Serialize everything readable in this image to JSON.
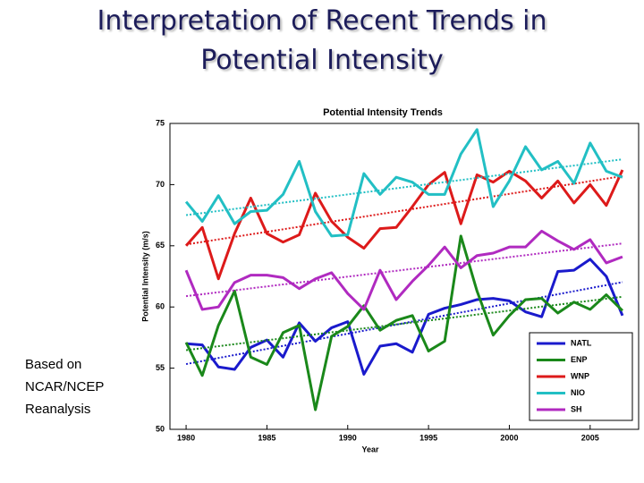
{
  "slide_title": "Interpretation of Recent Trends in Potential Intensity",
  "note": "Based on NCAR/NCEP Reanalysis",
  "chart_data": {
    "type": "line",
    "title": "Potential Intensity Trends",
    "x_label": "Year",
    "y_label": "Potential Intensity (m/s)",
    "x": [
      1980,
      1981,
      1982,
      1983,
      1984,
      1985,
      1986,
      1987,
      1988,
      1989,
      1990,
      1991,
      1992,
      1993,
      1994,
      1995,
      1996,
      1997,
      1998,
      1999,
      2000,
      2001,
      2002,
      2003,
      2004,
      2005,
      2006,
      2007
    ],
    "series": [
      {
        "name": "NATL",
        "color": "#1a1acc",
        "values": [
          57,
          56.9,
          55.1,
          54.9,
          56.7,
          57.3,
          55.9,
          58.7,
          57.2,
          58.3,
          58.8,
          54.5,
          56.8,
          57,
          56.3,
          59.4,
          59.9,
          60.2,
          60.6,
          60.7,
          60.5,
          59.6,
          59.2,
          62.9,
          63,
          63.9,
          62.5,
          59.3
        ]
      },
      {
        "name": "ENP",
        "color": "#1a881a",
        "values": [
          57.1,
          54.4,
          58.5,
          61.3,
          55.9,
          55.3,
          57.9,
          58.5,
          51.6,
          57.6,
          58.4,
          60.1,
          58.1,
          58.9,
          59.3,
          56.4,
          57.2,
          65.8,
          61.3,
          57.7,
          59.3,
          60.6,
          60.7,
          59.5,
          60.4,
          59.8,
          61,
          59.7
        ]
      },
      {
        "name": "WNP",
        "color": "#dd1a1a",
        "values": [
          65,
          66.5,
          62.3,
          66,
          68.9,
          66,
          65.3,
          65.9,
          69.3,
          67,
          65.7,
          64.8,
          66.4,
          66.5,
          68.2,
          70,
          71,
          66.8,
          70.8,
          70.2,
          71.1,
          70.3,
          68.9,
          70.3,
          68.5,
          70,
          68.3,
          71.2
        ]
      },
      {
        "name": "NIO",
        "color": "#22bfc4",
        "values": [
          68.6,
          67,
          69.1,
          66.8,
          67.8,
          67.9,
          69.2,
          71.9,
          67.8,
          65.8,
          65.9,
          70.9,
          69.2,
          70.6,
          70.2,
          69.2,
          69.2,
          72.5,
          74.5,
          68.2,
          70.3,
          73.1,
          71.2,
          71.9,
          70.1,
          73.4,
          71.1,
          70.6
        ]
      },
      {
        "name": "SH",
        "color": "#b02ac0",
        "values": [
          63,
          59.8,
          60,
          62,
          62.6,
          62.6,
          62.4,
          61.5,
          62.3,
          62.8,
          61.1,
          59.8,
          63,
          60.6,
          62.1,
          63.4,
          64.9,
          63.2,
          64.2,
          64.4,
          64.9,
          64.9,
          66.2,
          65.4,
          64.7,
          65.5,
          63.6,
          64.1
        ]
      }
    ],
    "xlim": [
      1979,
      2008
    ],
    "xticks": [
      1980,
      1985,
      1990,
      1995,
      2000,
      2005
    ],
    "ylim": [
      50,
      75
    ],
    "yticks": [
      50,
      55,
      60,
      65,
      70,
      75
    ],
    "trend_lines": true,
    "legend": "lower right"
  }
}
